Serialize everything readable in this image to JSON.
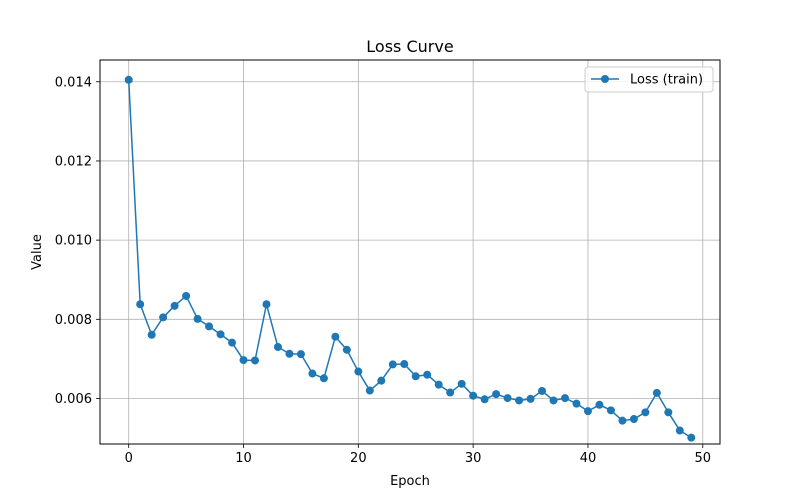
{
  "chart_data": {
    "type": "line",
    "title": "Loss Curve",
    "xlabel": "Epoch",
    "ylabel": "Value",
    "xlim": [
      -2.5,
      51.5
    ],
    "ylim": [
      0.00485,
      0.01455
    ],
    "xticks": [
      0,
      10,
      20,
      30,
      40,
      50
    ],
    "xtick_labels": [
      "0",
      "10",
      "20",
      "30",
      "40",
      "50"
    ],
    "yticks": [
      0.006,
      0.008,
      0.01,
      0.012,
      0.014
    ],
    "ytick_labels": [
      "0.006",
      "0.008",
      "0.010",
      "0.012",
      "0.014"
    ],
    "grid": true,
    "legend_position": "top-right",
    "series": [
      {
        "name": "Loss (train)",
        "color": "#1f77b4",
        "marker": "circle",
        "x": [
          0,
          1,
          2,
          3,
          4,
          5,
          6,
          7,
          8,
          9,
          10,
          11,
          12,
          13,
          14,
          15,
          16,
          17,
          18,
          19,
          20,
          21,
          22,
          23,
          24,
          25,
          26,
          27,
          28,
          29,
          30,
          31,
          32,
          33,
          34,
          35,
          36,
          37,
          38,
          39,
          40,
          41,
          42,
          43,
          44,
          45,
          46,
          47,
          48,
          49
        ],
        "y": [
          0.01405,
          0.00838,
          0.00761,
          0.00805,
          0.00834,
          0.00859,
          0.00801,
          0.00782,
          0.00762,
          0.00741,
          0.00697,
          0.00696,
          0.00838,
          0.0073,
          0.00713,
          0.00712,
          0.00663,
          0.00651,
          0.00756,
          0.00723,
          0.00668,
          0.0062,
          0.00645,
          0.00686,
          0.00687,
          0.00656,
          0.0066,
          0.00635,
          0.00615,
          0.00637,
          0.00607,
          0.00598,
          0.00611,
          0.00601,
          0.00595,
          0.00599,
          0.00619,
          0.00595,
          0.00601,
          0.00587,
          0.00568,
          0.00584,
          0.0057,
          0.00544,
          0.00548,
          0.00565,
          0.00614,
          0.00565,
          0.00519,
          0.00501
        ]
      }
    ]
  }
}
